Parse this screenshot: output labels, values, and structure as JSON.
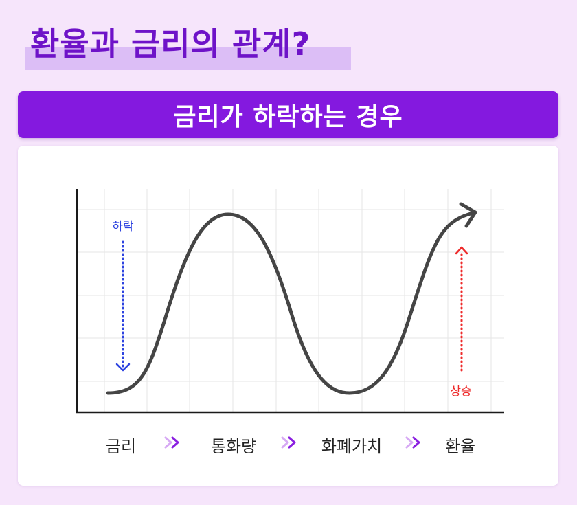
{
  "title": "환율과 금리의 관계?",
  "banner": "금리가 하락하는 경우",
  "annotations": {
    "down": "하락",
    "up": "상승"
  },
  "flow": [
    "금리",
    "통화량",
    "화폐가치",
    "환율"
  ],
  "colors": {
    "title": "#6e13c8",
    "title_highlight": "#dcbef6",
    "banner": "#8419df",
    "background": "#f6e5fb",
    "down_arrow": "#2d43e0",
    "up_arrow": "#ee2a2a",
    "curve": "#454545",
    "chevron_light": "#d6a8f4",
    "chevron_dark": "#8a1fe0"
  }
}
